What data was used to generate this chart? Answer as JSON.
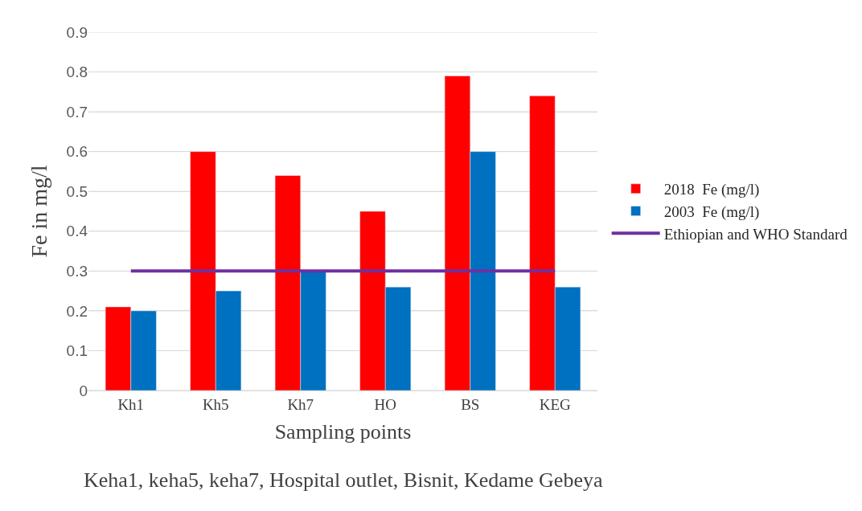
{
  "chart_data": {
    "type": "bar",
    "xlabel": "Sampling points",
    "ylabel": "Fe in mg/l",
    "categories": [
      "Kh1",
      "Kh5",
      "Kh7",
      "HO",
      "BS",
      "KEG"
    ],
    "series": [
      {
        "name": "2018  Fe (mg/l)",
        "color": "#ff0000",
        "values": [
          0.21,
          0.6,
          0.54,
          0.45,
          0.79,
          0.74
        ]
      },
      {
        "name": "2003  Fe (mg/l)",
        "color": "#0070c0",
        "values": [
          0.2,
          0.25,
          0.3,
          0.26,
          0.6,
          0.26
        ]
      },
      {
        "name": "Ethiopian and WHO Standard",
        "color": "#7030a0",
        "type": "line",
        "values": [
          0.3,
          0.3,
          0.3,
          0.3,
          0.3,
          0.3
        ]
      }
    ],
    "ylim": [
      0,
      0.9
    ],
    "yticks": [
      0,
      0.1,
      0.2,
      0.3,
      0.4,
      0.5,
      0.6,
      0.7,
      0.8,
      0.9
    ],
    "grid": "y",
    "legend": "right",
    "marker": "none",
    "annotations": [
      "Keha1, keha5, keha7, Hospital outlet, Bisnit, Kedame Gebeya"
    ]
  }
}
